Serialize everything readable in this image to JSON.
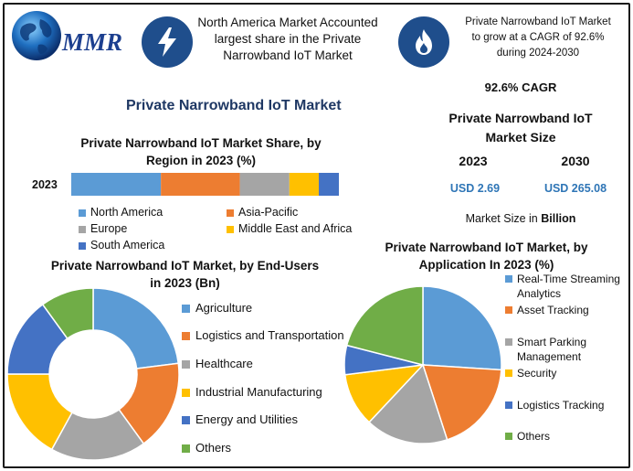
{
  "header": {
    "logo_text": "MMR",
    "stat1": "North America Market Accounted largest share in the Private Narrowband IoT Market",
    "stat2": "Private Narrowband IoT Market to grow at a CAGR of 92.6% during 2024-2030"
  },
  "main_title": "Private Narrowband IoT Market",
  "size_panel": {
    "cagr": "92.6% CAGR",
    "title": "Private Narrowband IoT Market Size",
    "year1": "2023",
    "year2": "2030",
    "value1": "USD 2.69",
    "value2": "USD 265.08",
    "unit_note_prefix": "Market Size in ",
    "unit_note_bold": "Billion"
  },
  "colors": {
    "blue": "#5b9bd5",
    "orange": "#ed7d31",
    "gray": "#a5a5a5",
    "yellow": "#ffc000",
    "dark_blue": "#4472c4",
    "green": "#70ad47",
    "icon_bg": "#1f4e8c",
    "title": "#1f3864"
  },
  "chart_data": [
    {
      "type": "bar",
      "orientation": "horizontal-stacked",
      "title": "Private Narrowband IoT Market Share, by Region in 2023 (%)",
      "categories": [
        "2023"
      ],
      "series": [
        {
          "name": "North America",
          "values": [
            33.5
          ],
          "color": "#5b9bd5"
        },
        {
          "name": "Asia-Pacific",
          "values": [
            29.5
          ],
          "color": "#ed7d31"
        },
        {
          "name": "Europe",
          "values": [
            18.5
          ],
          "color": "#a5a5a5"
        },
        {
          "name": "Middle East and Africa",
          "values": [
            11
          ],
          "color": "#ffc000"
        },
        {
          "name": "South America",
          "values": [
            7.5
          ],
          "color": "#4472c4"
        }
      ],
      "legend_position": "bottom"
    },
    {
      "type": "pie",
      "variant": "donut",
      "title": "Private Narrowband IoT Market, by End-Users in 2023 (Bn)",
      "labels": [
        "Agriculture",
        "Logistics and Transportation",
        "Healthcare",
        "Industrial Manufacturing",
        "Energy and Utilities",
        "Others"
      ],
      "values": [
        23,
        17,
        18,
        17,
        15,
        10
      ],
      "colors": [
        "#5b9bd5",
        "#ed7d31",
        "#a5a5a5",
        "#ffc000",
        "#4472c4",
        "#70ad47"
      ],
      "legend_position": "right"
    },
    {
      "type": "pie",
      "title": "Private Narrowband IoT Market, by Application In 2023 (%)",
      "labels": [
        "Real-Time Streaming Analytics",
        "Asset Tracking",
        "Smart Parking Management",
        "Security",
        "Logistics Tracking",
        "Others"
      ],
      "values": [
        26,
        19,
        17,
        11,
        6,
        21
      ],
      "colors": [
        "#5b9bd5",
        "#ed7d31",
        "#a5a5a5",
        "#ffc000",
        "#4472c4",
        "#70ad47"
      ],
      "legend_position": "right"
    }
  ]
}
